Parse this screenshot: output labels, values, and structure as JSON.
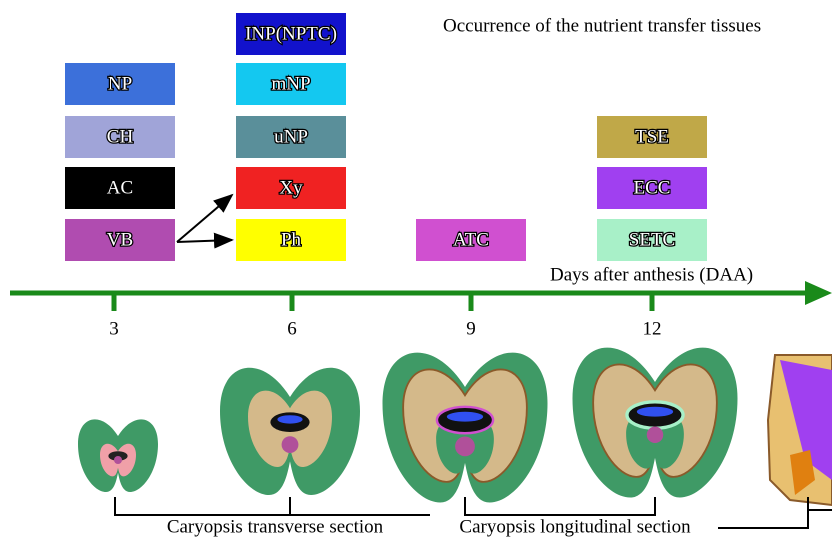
{
  "title": "Occurrence of the nutrient transfer tissues",
  "axis_label": "Days after anthesis (DAA)",
  "days": [
    3,
    6,
    9,
    12
  ],
  "boxes": [
    {
      "label": "NP",
      "color": "#3c70da"
    },
    {
      "label": "CH",
      "color": "#a0a4d8"
    },
    {
      "label": "AC",
      "color": "#000000"
    },
    {
      "label": "VB",
      "color": "#b04cb0"
    },
    {
      "label": "INP(NPTC)",
      "color": "#1212cc"
    },
    {
      "label": "mNP",
      "color": "#14c8f0"
    },
    {
      "label": "uNP",
      "color": "#5a8f9a"
    },
    {
      "label": "Xy",
      "color": "#f02222"
    },
    {
      "label": "Ph",
      "color": "#ffff00"
    },
    {
      "label": "ATC",
      "color": "#d050d0"
    },
    {
      "label": "TSE",
      "color": "#c0a848"
    },
    {
      "label": "ECC",
      "color": "#a040f0"
    },
    {
      "label": "SETC",
      "color": "#a8f0c8"
    }
  ],
  "sections": [
    "Caryopsis transverse section",
    "Caryopsis longitudinal section"
  ]
}
